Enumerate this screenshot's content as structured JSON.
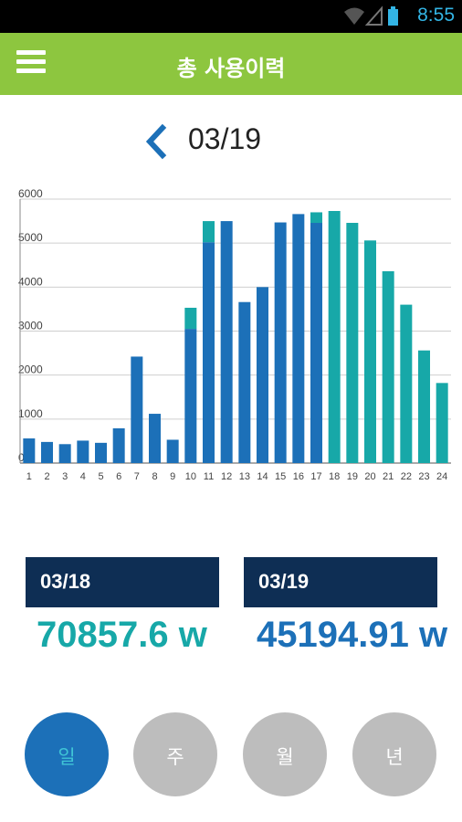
{
  "status_bar": {
    "time": "8:55"
  },
  "app_bar": {
    "title": "총 사용이력"
  },
  "date_nav": {
    "date": "03/19"
  },
  "colors": {
    "accent_green": "#8dc63f",
    "bar_blue": "#1c70b8",
    "bar_teal": "#17a8a8",
    "navy": "#0e2e54"
  },
  "chart_data": {
    "type": "bar",
    "categories": [
      "1",
      "2",
      "3",
      "4",
      "5",
      "6",
      "7",
      "8",
      "9",
      "10",
      "11",
      "12",
      "13",
      "14",
      "15",
      "16",
      "17",
      "18",
      "19",
      "20",
      "21",
      "22",
      "23",
      "24"
    ],
    "yticks": [
      "0",
      "1000",
      "2000",
      "3000",
      "4000",
      "5000",
      "6000"
    ],
    "ylim": [
      0,
      6000
    ],
    "grid": true,
    "series": [
      {
        "values": [
          560,
          480,
          430,
          510,
          460,
          790,
          2420,
          1120,
          530,
          3050,
          5020,
          5500,
          3660,
          4000,
          5470,
          5660,
          5460,
          0,
          0,
          0,
          0,
          0,
          0,
          0
        ]
      },
      {
        "values": [
          0,
          0,
          0,
          0,
          0,
          0,
          0,
          0,
          0,
          480,
          480,
          0,
          0,
          0,
          0,
          0,
          240,
          5730,
          5460,
          5060,
          4360,
          3600,
          2560,
          1820
        ]
      }
    ]
  },
  "summary": [
    {
      "date": "03/18",
      "value": "70857.6 w",
      "color": "#17a8a8"
    },
    {
      "date": "03/19",
      "value": "45194.91 w",
      "color": "#1c70b8"
    }
  ],
  "period_buttons": [
    {
      "label": "일"
    },
    {
      "label": "주"
    },
    {
      "label": "월"
    },
    {
      "label": "년"
    }
  ]
}
